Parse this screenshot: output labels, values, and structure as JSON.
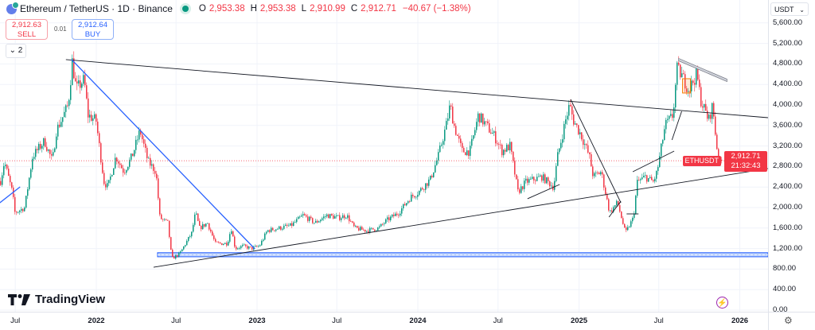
{
  "header": {
    "title": "Ethereum / TetherUS · 1D · Binance",
    "ohlc": {
      "o_label": "O",
      "o": "2,953.38",
      "h_label": "H",
      "h": "2,953.38",
      "l_label": "L",
      "l": "2,910.99",
      "c_label": "C",
      "c": "2,912.71",
      "change": "−40.67 (−1.38%)"
    }
  },
  "trade": {
    "sell_price": "2,912.63",
    "sell_label": "SELL",
    "spread": "0.01",
    "buy_price": "2,912.64",
    "buy_label": "BUY"
  },
  "legend_toggle": {
    "icon": "chevron-down-icon",
    "count": "2"
  },
  "currency_select": "USDT",
  "brand": "TradingView",
  "price_tag": {
    "symbol": "ETHUSDT",
    "price": "2,912.71",
    "countdown": "21:32:43"
  },
  "colors": {
    "up": "#089981",
    "down": "#f23645",
    "trendline": "#131722",
    "blue_line": "#2962ff",
    "grid": "#f0f3fa"
  },
  "chart_data": {
    "type": "candlestick",
    "title": "Ethereum / TetherUS · 1D · Binance",
    "ylim": [
      0,
      5800
    ],
    "y_ticks": [
      "5,600.00",
      "5,200.00",
      "4,800.00",
      "4,400.00",
      "4,000.00",
      "3,600.00",
      "3,200.00",
      "2,800.00",
      "2,400.00",
      "2,000.00",
      "1,600.00",
      "1,200.00",
      "800.00",
      "400.00",
      "0.00"
    ],
    "y_tick_values": [
      5600,
      5200,
      4800,
      4400,
      4000,
      3600,
      3200,
      2800,
      2400,
      2000,
      1600,
      1200,
      800,
      400,
      0
    ],
    "x_ticks": [
      {
        "label": "Jul",
        "date": "2021-07-01",
        "year": false
      },
      {
        "label": "2022",
        "date": "2022-01-01",
        "year": true
      },
      {
        "label": "Jul",
        "date": "2022-07-01",
        "year": false
      },
      {
        "label": "2023",
        "date": "2023-01-01",
        "year": true
      },
      {
        "label": "Jul",
        "date": "2023-07-01",
        "year": false
      },
      {
        "label": "2024",
        "date": "2024-01-01",
        "year": true
      },
      {
        "label": "Jul",
        "date": "2024-07-01",
        "year": false
      },
      {
        "label": "2025",
        "date": "2025-01-01",
        "year": true
      },
      {
        "label": "Jul",
        "date": "2025-07-01",
        "year": false
      },
      {
        "label": "2026",
        "date": "2026-01-01",
        "year": true
      }
    ],
    "grid": true,
    "last_price": 2912.71,
    "series": [
      {
        "dates": [
          "2021-05-27",
          "2021-06-05",
          "2021-06-23",
          "2021-06-29",
          "2021-07-21",
          "2021-08-08",
          "2021-09-04",
          "2021-09-22",
          "2021-10-01",
          "2021-10-28",
          "2021-11-06",
          "2021-11-15",
          "2021-12-03",
          "2021-12-12",
          "2021-12-30",
          "2022-01-17",
          "2022-01-26",
          "2022-02-13",
          "2022-03-03",
          "2022-03-22",
          "2022-04-09",
          "2022-04-27",
          "2022-05-15",
          "2022-05-24",
          "2022-06-11",
          "2022-06-20",
          "2022-07-08",
          "2022-08-04",
          "2022-08-13",
          "2022-08-22",
          "2022-09-09",
          "2022-09-27",
          "2022-10-24",
          "2022-11-02",
          "2022-11-11",
          "2022-11-29",
          "2022-12-18",
          "2023-01-05",
          "2023-01-23",
          "2023-02-19",
          "2023-03-18",
          "2023-04-14",
          "2023-05-11",
          "2023-06-07",
          "2023-07-04",
          "2023-07-22",
          "2023-08-09",
          "2023-09-06",
          "2023-10-03",
          "2023-10-21",
          "2023-11-17",
          "2023-12-14",
          "2024-01-01",
          "2024-01-28",
          "2024-02-15",
          "2024-03-04",
          "2024-03-13",
          "2024-03-22",
          "2024-04-09",
          "2024-04-27",
          "2024-05-16",
          "2024-06-03",
          "2024-06-21",
          "2024-07-09",
          "2024-07-27",
          "2024-08-14",
          "2024-09-01",
          "2024-10-07",
          "2024-11-03",
          "2024-11-12",
          "2024-11-30",
          "2024-12-09",
          "2024-12-18",
          "2025-01-05",
          "2025-01-23",
          "2025-02-01",
          "2025-02-19",
          "2025-03-10",
          "2025-03-28",
          "2025-04-15",
          "2025-05-03",
          "2025-05-12",
          "2025-05-30",
          "2025-06-17",
          "2025-06-26",
          "2025-07-14",
          "2025-08-01",
          "2025-08-10",
          "2025-08-19",
          "2025-09-06",
          "2025-09-24",
          "2025-10-03",
          "2025-10-21",
          "2025-10-30",
          "2025-11-08",
          "2025-11-17",
          "2025-11-23"
        ],
        "close": [
          2500,
          2900,
          2300,
          1900,
          2000,
          3000,
          3300,
          2900,
          3500,
          4000,
          4850,
          4300,
          4500,
          3800,
          3700,
          2500,
          2400,
          3000,
          2700,
          3000,
          3500,
          2900,
          2700,
          1800,
          1700,
          1000,
          1100,
          1500,
          1900,
          1600,
          1700,
          1300,
          1300,
          1600,
          1200,
          1250,
          1200,
          1250,
          1550,
          1600,
          1650,
          1850,
          1700,
          1850,
          1800,
          1850,
          1600,
          1550,
          1600,
          1750,
          1900,
          2200,
          2300,
          2550,
          3000,
          3600,
          4000,
          3600,
          3100,
          3100,
          3800,
          3600,
          3400,
          3100,
          3200,
          2300,
          2500,
          2600,
          2400,
          3000,
          3700,
          4000,
          3700,
          3400,
          3000,
          2600,
          2700,
          1900,
          2100,
          1500,
          1800,
          2500,
          2600,
          2500,
          2700,
          3600,
          3800,
          4700,
          4600,
          4300,
          4600,
          4100,
          3700,
          4000,
          3200,
          2800,
          2912.71
        ]
      }
    ],
    "drawings": [
      {
        "kind": "trendline",
        "color": "#131722",
        "from": [
          "2021-10-24",
          4884
        ],
        "to": [
          "2026-03-06",
          3752
        ]
      },
      {
        "kind": "trendline",
        "color": "#131722",
        "from": [
          "2022-05-11",
          837
        ],
        "to": [
          "2026-03-06",
          2760
        ]
      },
      {
        "kind": "trendline",
        "color": "#2962ff",
        "from": [
          "2021-11-06",
          4884
        ],
        "to": [
          "2022-12-27",
          1194
        ]
      },
      {
        "kind": "trendline",
        "color": "#2962ff",
        "from": [
          "2021-05-27",
          2093
        ],
        "to": [
          "2021-07-12",
          2403
        ]
      },
      {
        "kind": "trendline",
        "color": "#131722",
        "from": [
          "2024-09-06",
          2171
        ],
        "to": [
          "2024-11-18",
          2450
        ]
      },
      {
        "kind": "trendline",
        "color": "#131722",
        "from": [
          "2024-12-13",
          4109
        ],
        "to": [
          "2025-04-06",
          2093
        ]
      },
      {
        "kind": "trendline",
        "color": "#131722",
        "from": [
          "2025-03-10",
          1814
        ],
        "to": [
          "2025-04-06",
          2124
        ]
      },
      {
        "kind": "trendline",
        "color": "#131722",
        "from": [
          "2025-04-19",
          1876
        ],
        "to": [
          "2025-05-16",
          1876
        ]
      },
      {
        "kind": "trendline",
        "color": "#131722",
        "from": [
          "2025-05-03",
          2698
        ],
        "to": [
          "2025-08-05",
          3101
        ]
      },
      {
        "kind": "trendline",
        "color": "#131722",
        "from": [
          "2025-07-31",
          3318
        ],
        "to": [
          "2025-08-22",
          3876
        ]
      },
      {
        "kind": "channel",
        "color": "#787b86",
        "from": [
          "2025-08-15",
          4884
        ],
        "to": [
          "2025-12-03",
          4480
        ]
      },
      {
        "kind": "band",
        "color": "#2962ff",
        "from": "2022-05-20",
        "to": "2026-03-06",
        "top": 1120,
        "bottom": 1040
      },
      {
        "kind": "box",
        "color": "#f57c00",
        "from": [
          "2025-08-24",
          4512
        ],
        "to": [
          "2025-09-11",
          4233
        ]
      }
    ]
  }
}
